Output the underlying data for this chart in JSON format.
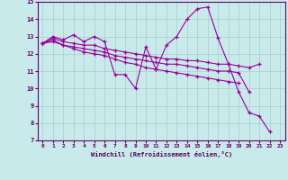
{
  "xlabel": "Windchill (Refroidissement éolien,°C)",
  "background_color": "#c8eaea",
  "line_color": "#990099",
  "grid_color": "#aacccc",
  "xlim": [
    -0.5,
    23.5
  ],
  "ylim": [
    7,
    15
  ],
  "xtick_labels": [
    "0",
    "1",
    "2",
    "3",
    "4",
    "5",
    "6",
    "7",
    "8",
    "9",
    "10",
    "11",
    "12",
    "13",
    "14",
    "15",
    "16",
    "17",
    "18",
    "19",
    "20",
    "21",
    "22",
    "23"
  ],
  "xtick_vals": [
    0,
    1,
    2,
    3,
    4,
    5,
    6,
    7,
    8,
    9,
    10,
    11,
    12,
    13,
    14,
    15,
    16,
    17,
    18,
    19,
    20,
    21,
    22,
    23
  ],
  "ytick_vals": [
    7,
    8,
    9,
    10,
    11,
    12,
    13,
    14,
    15
  ],
  "series": [
    {
      "x": [
        0,
        1,
        2,
        3,
        4,
        5,
        6,
        7,
        8,
        9,
        10,
        11,
        12,
        13,
        14,
        15,
        16,
        17,
        18,
        19,
        20,
        21,
        22
      ],
      "y": [
        12.6,
        13.0,
        12.8,
        13.1,
        12.7,
        13.0,
        12.7,
        10.8,
        10.8,
        10.0,
        12.4,
        11.1,
        12.5,
        13.0,
        14.0,
        14.6,
        14.7,
        12.9,
        11.4,
        9.8,
        8.6,
        8.4,
        7.5
      ]
    },
    {
      "x": [
        0,
        1,
        2,
        3,
        4,
        5,
        6,
        7,
        8,
        9,
        10,
        11,
        12,
        13,
        14,
        15,
        16,
        17,
        18,
        19,
        20,
        21
      ],
      "y": [
        12.6,
        12.9,
        12.7,
        12.6,
        12.5,
        12.5,
        12.3,
        12.2,
        12.1,
        12.0,
        11.9,
        11.8,
        11.7,
        11.7,
        11.6,
        11.6,
        11.5,
        11.4,
        11.4,
        11.3,
        11.2,
        11.4
      ]
    },
    {
      "x": [
        0,
        1,
        2,
        3,
        4,
        5,
        6,
        7,
        8,
        9,
        10,
        11,
        12,
        13,
        14,
        15,
        16,
        17,
        18,
        19,
        20
      ],
      "y": [
        12.6,
        12.8,
        12.5,
        12.4,
        12.3,
        12.2,
        12.1,
        11.9,
        11.8,
        11.7,
        11.6,
        11.5,
        11.4,
        11.4,
        11.3,
        11.2,
        11.1,
        11.0,
        11.0,
        10.9,
        9.8
      ]
    },
    {
      "x": [
        0,
        1,
        2,
        3,
        4,
        5,
        6,
        7,
        8,
        9,
        10,
        11,
        12,
        13,
        14,
        15,
        16,
        17,
        18,
        19
      ],
      "y": [
        12.6,
        12.7,
        12.5,
        12.3,
        12.1,
        12.0,
        11.9,
        11.7,
        11.5,
        11.4,
        11.2,
        11.1,
        11.0,
        10.9,
        10.8,
        10.7,
        10.6,
        10.5,
        10.4,
        10.3
      ]
    }
  ]
}
